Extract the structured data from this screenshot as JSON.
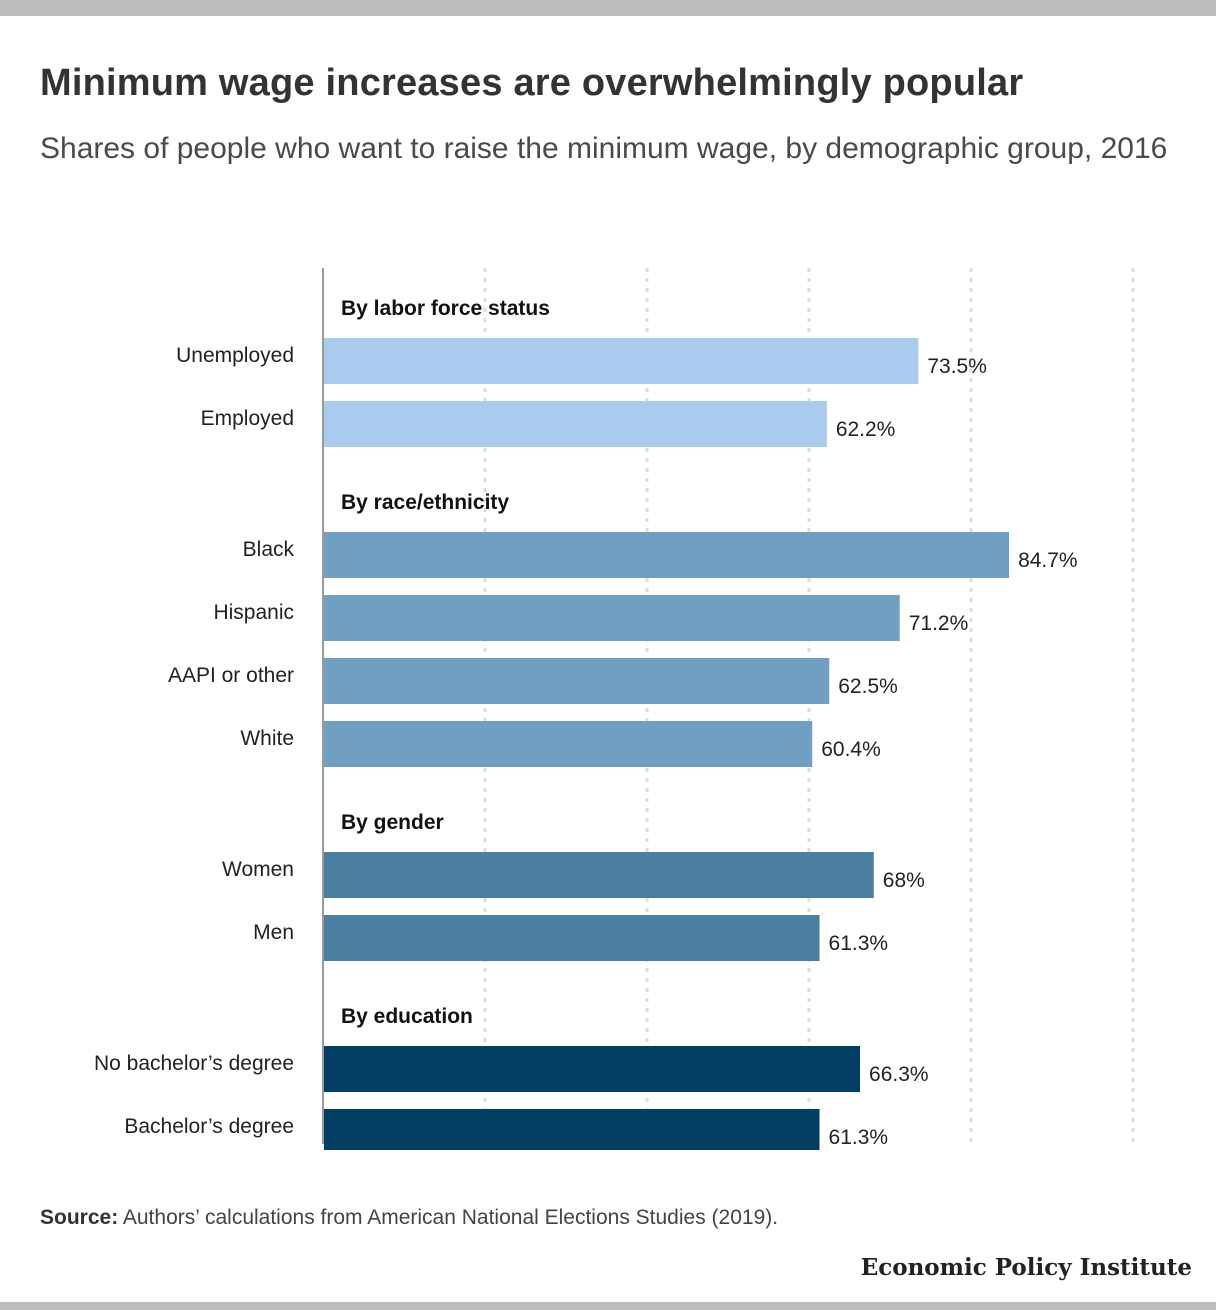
{
  "title": "Minimum wage increases are overwhelmingly popular",
  "subtitle": "Shares of people who want to raise the minimum wage, by demographic group, 2016",
  "source_label": "Source:",
  "source_text": "Authors’ calculations from American National Elections Studies (2019).",
  "logo": "Economic Policy Institute",
  "chart_data": {
    "type": "bar",
    "orientation": "horizontal",
    "xlim": [
      0,
      100
    ],
    "grid": true,
    "value_suffix": "%",
    "groups": [
      {
        "name": "By labor force status",
        "color": "#a9cbee",
        "items": [
          {
            "label": "Unemployed",
            "value": 73.5
          },
          {
            "label": "Employed",
            "value": 62.2
          }
        ]
      },
      {
        "name": "By race/ethnicity",
        "color": "#709fc2",
        "items": [
          {
            "label": "Black",
            "value": 84.7
          },
          {
            "label": "Hispanic",
            "value": 71.2
          },
          {
            "label": "AAPI or other",
            "value": 62.5
          },
          {
            "label": "White",
            "value": 60.4
          }
        ]
      },
      {
        "name": "By gender",
        "color": "#4a7fa2",
        "items": [
          {
            "label": "Women",
            "value": 68
          },
          {
            "label": "Men",
            "value": 61.3
          }
        ]
      },
      {
        "name": "By education",
        "color": "#033f63",
        "items": [
          {
            "label": "No bachelor’s degree",
            "value": 66.3
          },
          {
            "label": "Bachelor’s degree",
            "value": 61.3
          }
        ]
      }
    ]
  }
}
